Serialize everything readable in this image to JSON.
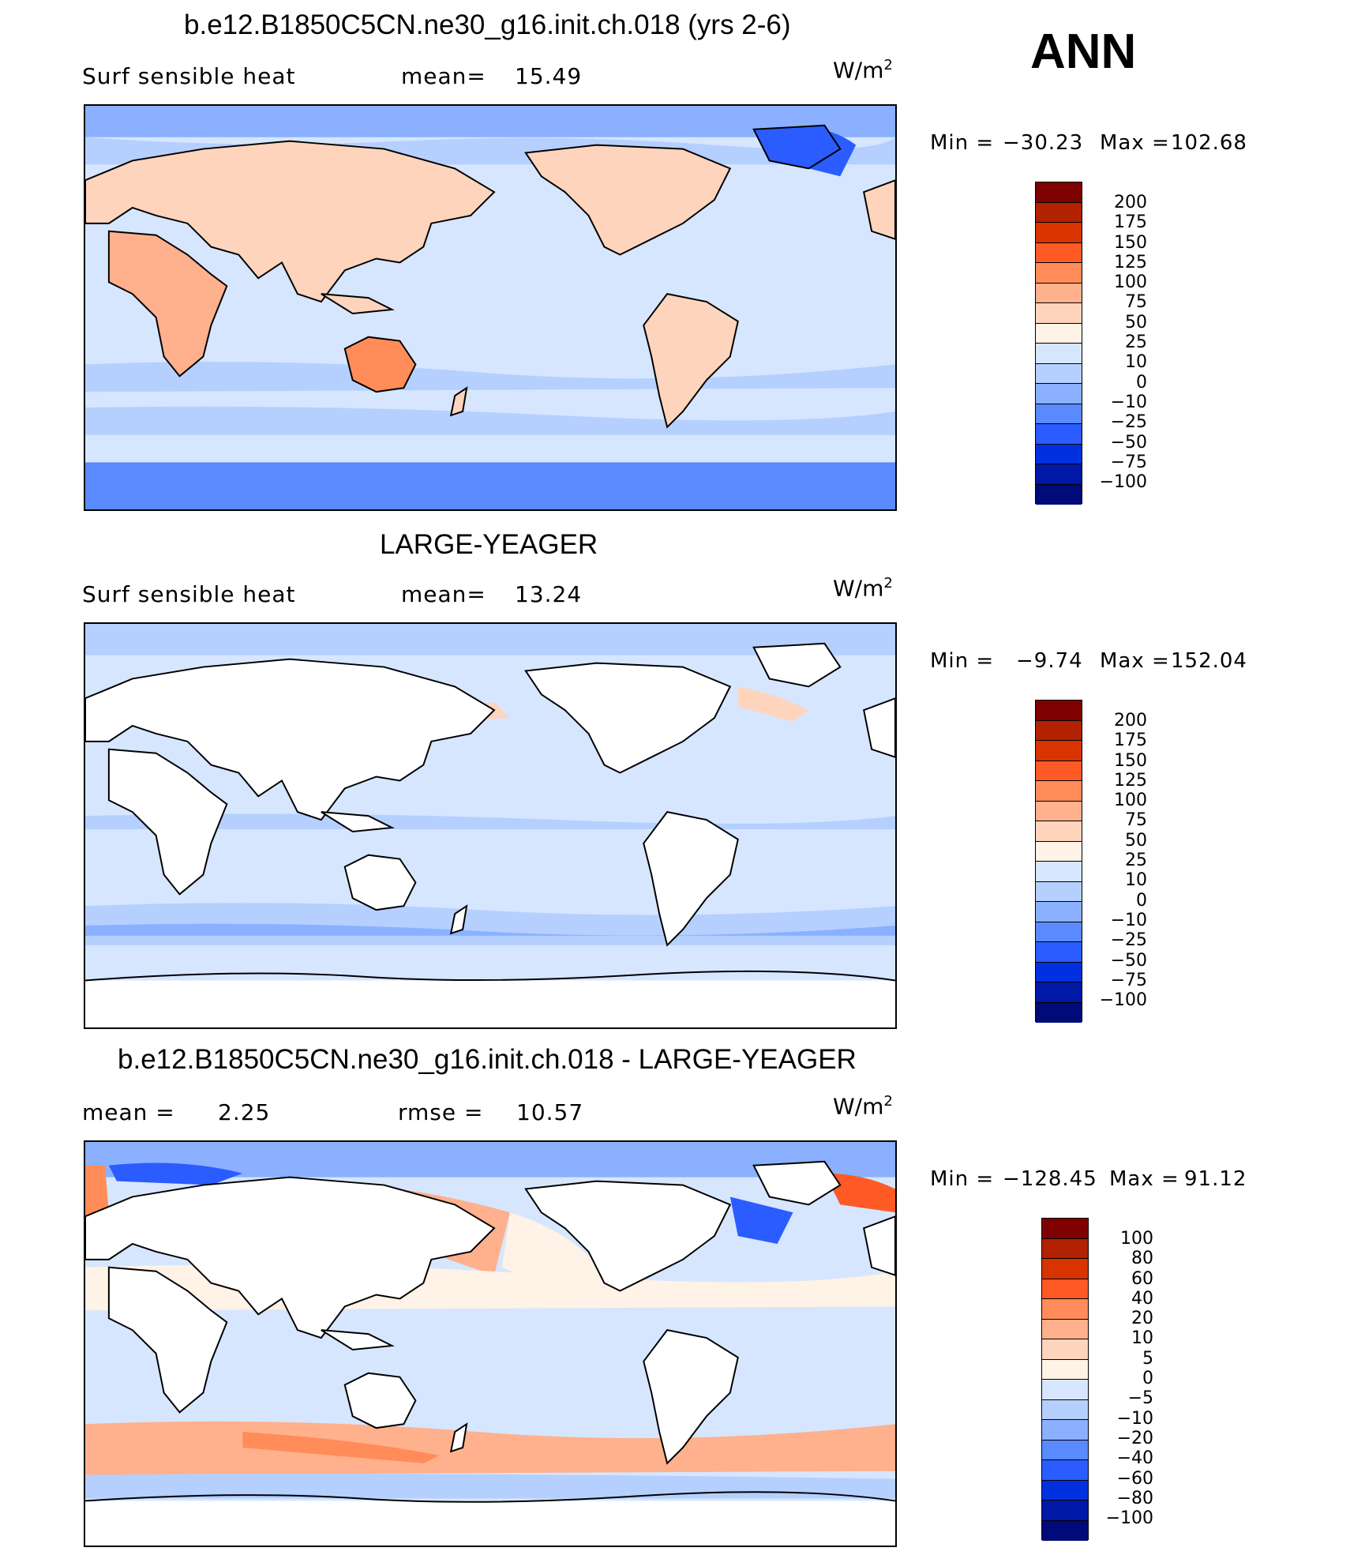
{
  "header": {
    "season": "ANN"
  },
  "panels": [
    {
      "id": "p1",
      "title": "b.e12.B1850C5CN.ne30_g16.init.ch.018 (yrs 2-6)",
      "left_label": "Surf  sensible  heat",
      "stat_label": "mean=",
      "stat_value": "15.49",
      "units": "W/m",
      "units_exp": "2",
      "min_label": "Min  =",
      "min_value": "−30.23",
      "max_label": "Max  =",
      "max_value": "102.68",
      "colorbar": {
        "labels": [
          "200",
          "175",
          "150",
          "125",
          "100",
          "75",
          "50",
          "25",
          "10",
          "0",
          "−10",
          "−25",
          "−50",
          "−75",
          "−100"
        ],
        "colors": [
          "#7f0000",
          "#b22200",
          "#d93300",
          "#ff5a26",
          "#ff8c59",
          "#ffb08c",
          "#ffd4bc",
          "#fff2e6",
          "#d6e6ff",
          "#b5d0ff",
          "#8ab0ff",
          "#5a8aff",
          "#2a5cff",
          "#0030e0",
          "#0018a8",
          "#000a78"
        ]
      }
    },
    {
      "id": "p2",
      "title": "LARGE-YEAGER",
      "left_label": "Surf  sensible  heat",
      "stat_label": "mean=",
      "stat_value": "13.24",
      "units": "W/m",
      "units_exp": "2",
      "min_label": "Min  =",
      "min_value": "−9.74",
      "max_label": "Max  =",
      "max_value": "152.04",
      "colorbar": {
        "labels": [
          "200",
          "175",
          "150",
          "125",
          "100",
          "75",
          "50",
          "25",
          "10",
          "0",
          "−10",
          "−25",
          "−50",
          "−75",
          "−100"
        ],
        "colors": [
          "#7f0000",
          "#b22200",
          "#d93300",
          "#ff5a26",
          "#ff8c59",
          "#ffb08c",
          "#ffd4bc",
          "#fff2e6",
          "#d6e6ff",
          "#b5d0ff",
          "#8ab0ff",
          "#5a8aff",
          "#2a5cff",
          "#0030e0",
          "#0018a8",
          "#000a78"
        ]
      }
    },
    {
      "id": "p3",
      "title": "b.e12.B1850C5CN.ne30_g16.init.ch.018 - LARGE-YEAGER",
      "left_label": "mean  =",
      "left_value": "2.25",
      "stat_label": "rmse  =",
      "stat_value": "10.57",
      "units": "W/m",
      "units_exp": "2",
      "min_label": "Min  =",
      "min_value": "−128.45",
      "max_label": "Max  =",
      "max_value": "91.12",
      "colorbar": {
        "labels": [
          "100",
          "80",
          "60",
          "40",
          "20",
          "10",
          "5",
          "0",
          "−5",
          "−10",
          "−20",
          "−40",
          "−60",
          "−80",
          "−100"
        ],
        "colors": [
          "#7f0000",
          "#b22200",
          "#d93300",
          "#ff5a26",
          "#ff8c59",
          "#ffb08c",
          "#ffd4bc",
          "#fff2e6",
          "#d6e6ff",
          "#b5d0ff",
          "#8ab0ff",
          "#5a8aff",
          "#2a5cff",
          "#0030e0",
          "#0018a8",
          "#000a78"
        ]
      }
    }
  ],
  "map_colors": {
    "ocean_light": "#d6e6ff",
    "ocean_mid": "#b5d0ff",
    "polar": "#5a8aff",
    "land_warm": "#ffd4bc",
    "land_hot": "#ff8c59",
    "ocean_warm": "#fff2e6",
    "diff_pos": "#ffb08c",
    "diff_strong": "#ff5a26",
    "diff_neg": "#2a5cff",
    "masked": "#ffffff",
    "coast": "#000000"
  }
}
